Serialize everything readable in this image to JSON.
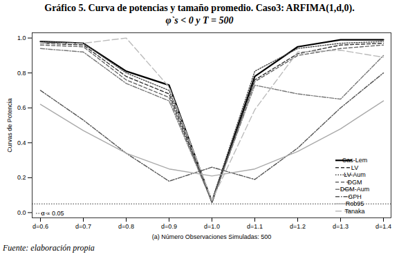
{
  "chart_data": {
    "type": "line",
    "title": "Gráfico 5. Curva de potencias y tamaño promedio. Caso3: ARFIMA(1,d,0).",
    "subtitle": "φ`s < 0 y T = 500",
    "source": "Fuente: elaboración propia",
    "x_label": "(a) Número Observaciones Simuladas: 500",
    "y_label": "Curvas de Potencia",
    "categories": [
      "d=0.6",
      "d=0.7",
      "d=0.8",
      "d=0.9",
      "d=1.0",
      "d=1.1",
      "d=1.2",
      "d=1.3",
      "d=1.4"
    ],
    "series": [
      {
        "name": "Cas-Lem",
        "color": "#000000",
        "line_style": "solid",
        "values": [
          0.98,
          0.97,
          0.81,
          0.73,
          0.06,
          0.78,
          0.95,
          0.99,
          0.99
        ]
      },
      {
        "name": "LV",
        "color": "#333333",
        "line_style": "dashed",
        "values": [
          0.97,
          0.96,
          0.78,
          0.68,
          0.06,
          0.76,
          0.91,
          0.96,
          0.97
        ]
      },
      {
        "name": "LV-Aum",
        "color": "#444444",
        "line_style": "dotted",
        "values": [
          0.98,
          0.97,
          0.8,
          0.7,
          0.07,
          0.81,
          0.94,
          0.97,
          0.98
        ]
      },
      {
        "name": "DGM",
        "color": "#666666",
        "line_style": "dashed",
        "values": [
          0.96,
          0.95,
          0.76,
          0.66,
          0.06,
          0.75,
          0.9,
          0.94,
          0.96
        ]
      },
      {
        "name": "DGM-Aum",
        "color": "#777777",
        "line_style": "dashdot",
        "values": [
          0.94,
          0.92,
          0.74,
          0.64,
          0.06,
          0.73,
          0.68,
          0.65,
          0.9
        ]
      },
      {
        "name": "GPH",
        "color": "#555555",
        "line_style": "dashdot",
        "values": [
          0.7,
          0.53,
          0.34,
          0.18,
          0.26,
          0.19,
          0.37,
          0.6,
          0.8
        ]
      },
      {
        "name": "Rob95",
        "color": "#aaaaaa",
        "line_style": "solid",
        "values": [
          0.62,
          0.47,
          0.34,
          0.25,
          0.21,
          0.25,
          0.35,
          0.48,
          0.64
        ]
      },
      {
        "name": "Tanaka",
        "color": "#bbbbbb",
        "line_style": "longdash",
        "values": [
          0.97,
          0.97,
          1.0,
          0.72,
          0.07,
          0.59,
          0.92,
          0.93,
          0.89
        ]
      }
    ],
    "reference_line": {
      "value": 0.05,
      "label": "α = 0.05",
      "line_style": "dotted",
      "color": "#000000"
    },
    "ylim": [
      -0.03,
      1.03
    ],
    "yticks": [
      {
        "value": 0,
        "label": "0.0"
      },
      {
        "value": 0.2,
        "label": "0.2"
      },
      {
        "value": 0.4,
        "label": "0.4"
      },
      {
        "value": 0.6,
        "label": "0.6"
      },
      {
        "value": 0.8,
        "label": "0.8"
      },
      {
        "value": 1,
        "label": "1.0"
      }
    ],
    "grid": false,
    "legend": "bottom-right"
  }
}
